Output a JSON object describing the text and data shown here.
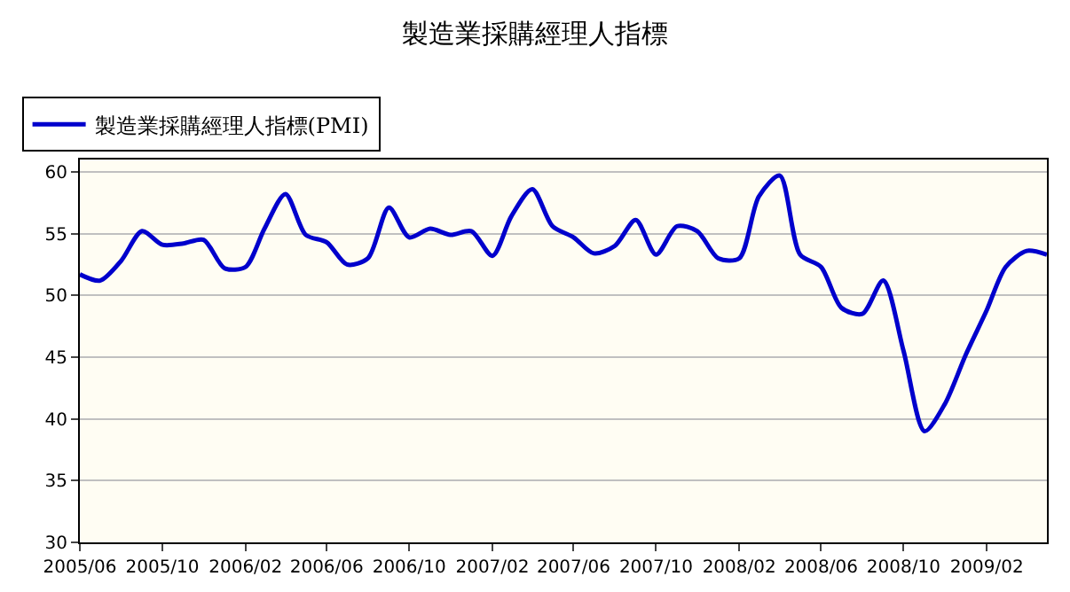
{
  "chart_data": {
    "type": "line",
    "title": "製造業採購經理人指標",
    "x": [
      "2005-06",
      "2005-07",
      "2005-08",
      "2005-09",
      "2005-10",
      "2005-11",
      "2005-12",
      "2006-01",
      "2006-02",
      "2006-03",
      "2006-04",
      "2006-05",
      "2006-06",
      "2006-07",
      "2006-08",
      "2006-09",
      "2006-10",
      "2006-11",
      "2006-12",
      "2007-01",
      "2007-02",
      "2007-03",
      "2007-04",
      "2007-05",
      "2007-06",
      "2007-07",
      "2007-08",
      "2007-09",
      "2007-10",
      "2007-11",
      "2007-12",
      "2008-01",
      "2008-02",
      "2008-03",
      "2008-04",
      "2008-05",
      "2008-06",
      "2008-07",
      "2008-08",
      "2008-09",
      "2008-10",
      "2008-11",
      "2008-12",
      "2009-01",
      "2009-02",
      "2009-03",
      "2009-04",
      "2009-05"
    ],
    "series": [
      {
        "name": "製造業採購經理人指標(PMI)",
        "color": "#0000cc",
        "values": [
          51.7,
          51.2,
          52.8,
          55.2,
          54.1,
          54.2,
          54.5,
          52.2,
          52.3,
          55.4,
          58.2,
          54.9,
          54.3,
          52.5,
          53.0,
          57.1,
          54.7,
          55.4,
          54.9,
          55.2,
          53.2,
          56.4,
          58.6,
          55.6,
          54.7,
          53.4,
          54.0,
          56.1,
          53.3,
          55.6,
          55.2,
          53.0,
          53.0,
          58.0,
          59.7,
          53.3,
          52.3,
          49.0,
          48.5,
          51.2,
          45.5,
          39.0,
          41.2,
          45.2,
          48.8,
          52.3,
          53.6,
          53.3
        ]
      }
    ],
    "xlim": [
      "2005-06",
      "2009-05"
    ],
    "xticks": [
      {
        "value": "2005-06",
        "label": "2005/06"
      },
      {
        "value": "2005-10",
        "label": "2005/10"
      },
      {
        "value": "2006-02",
        "label": "2006/02"
      },
      {
        "value": "2006-06",
        "label": "2006/06"
      },
      {
        "value": "2006-10",
        "label": "2006/10"
      },
      {
        "value": "2007-02",
        "label": "2007/02"
      },
      {
        "value": "2007-06",
        "label": "2007/06"
      },
      {
        "value": "2007-10",
        "label": "2007/10"
      },
      {
        "value": "2008-02",
        "label": "2008/02"
      },
      {
        "value": "2008-06",
        "label": "2008/06"
      },
      {
        "value": "2008-10",
        "label": "2008/10"
      },
      {
        "value": "2009-02",
        "label": "2009/02"
      }
    ],
    "ylim": [
      30,
      61
    ],
    "yticks": [
      30,
      35,
      40,
      45,
      50,
      55,
      60
    ],
    "grid": "y",
    "legend": "top left",
    "marker": "none",
    "line_style": "solid"
  }
}
